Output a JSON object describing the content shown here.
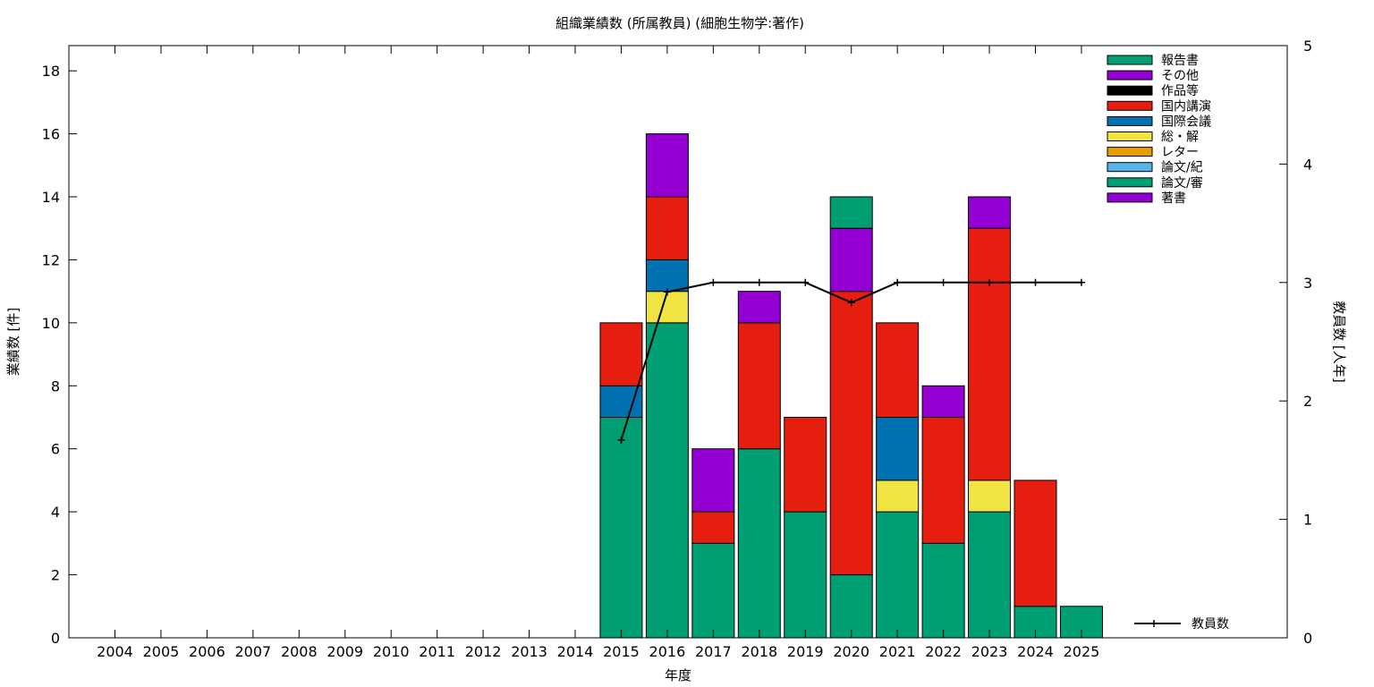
{
  "chart_data": {
    "type": "bar",
    "stacked": true,
    "title": "組織業績数 (所属教員) (細胞生物学:著作)",
    "xlabel": "年度",
    "ylabel": "業績数 [件]",
    "y2label": "教員数 [人年]",
    "ylim": [
      0,
      18.8
    ],
    "y2lim": [
      0,
      5
    ],
    "yticks": [
      0,
      2,
      4,
      6,
      8,
      10,
      12,
      14,
      16,
      18
    ],
    "y2ticks": [
      0,
      1,
      2,
      3,
      4,
      5
    ],
    "categories": [
      "2004",
      "2005",
      "2006",
      "2007",
      "2008",
      "2009",
      "2010",
      "2011",
      "2012",
      "2013",
      "2014",
      "2015",
      "2016",
      "2017",
      "2018",
      "2019",
      "2020",
      "2021",
      "2022",
      "2023",
      "2024",
      "2025"
    ],
    "series": [
      {
        "name": "論文/審",
        "color": "#009e73",
        "values": [
          0,
          0,
          0,
          0,
          0,
          0,
          0,
          0,
          0,
          0,
          0,
          7,
          10,
          3,
          6,
          4,
          2,
          4,
          3,
          4,
          1,
          1
        ]
      },
      {
        "name": "論文/紀",
        "color": "#56b4e9",
        "values": [
          0,
          0,
          0,
          0,
          0,
          0,
          0,
          0,
          0,
          0,
          0,
          0,
          0,
          0,
          0,
          0,
          0,
          0,
          0,
          0,
          0,
          0
        ]
      },
      {
        "name": "レター",
        "color": "#e69f00",
        "values": [
          0,
          0,
          0,
          0,
          0,
          0,
          0,
          0,
          0,
          0,
          0,
          0,
          0,
          0,
          0,
          0,
          0,
          0,
          0,
          0,
          0,
          0
        ]
      },
      {
        "name": "総・解",
        "color": "#f0e442",
        "values": [
          0,
          0,
          0,
          0,
          0,
          0,
          0,
          0,
          0,
          0,
          0,
          0,
          1,
          0,
          0,
          0,
          0,
          1,
          0,
          1,
          0,
          0
        ]
      },
      {
        "name": "国際会議",
        "color": "#0072b2",
        "values": [
          0,
          0,
          0,
          0,
          0,
          0,
          0,
          0,
          0,
          0,
          0,
          1,
          1,
          0,
          0,
          0,
          0,
          2,
          0,
          0,
          0,
          0
        ]
      },
      {
        "name": "国内講演",
        "color": "#e51e10",
        "values": [
          0,
          0,
          0,
          0,
          0,
          0,
          0,
          0,
          0,
          0,
          0,
          2,
          2,
          1,
          4,
          3,
          9,
          3,
          4,
          8,
          4,
          0
        ]
      },
      {
        "name": "作品等",
        "color": "#000000",
        "values": [
          0,
          0,
          0,
          0,
          0,
          0,
          0,
          0,
          0,
          0,
          0,
          0,
          0,
          0,
          0,
          0,
          0,
          0,
          0,
          0,
          0,
          0
        ]
      },
      {
        "name": "その他",
        "color": "#9400d3",
        "values": [
          0,
          0,
          0,
          0,
          0,
          0,
          0,
          0,
          0,
          0,
          0,
          0,
          2,
          2,
          1,
          0,
          2,
          0,
          1,
          1,
          0,
          0
        ]
      },
      {
        "name": "報告書",
        "color": "#009e73",
        "values": [
          0,
          0,
          0,
          0,
          0,
          0,
          0,
          0,
          0,
          0,
          0,
          0,
          0,
          0,
          0,
          0,
          1,
          0,
          0,
          0,
          0,
          0
        ]
      }
    ],
    "legend_order": [
      "報告書",
      "その他",
      "作品等",
      "国内講演",
      "国際会議",
      "総・解",
      "レター",
      "論文/紀",
      "論文/審",
      "著書"
    ],
    "legend_colors": {
      "著書": "#9400d3"
    },
    "legend_position": "top-right",
    "line": {
      "name": "教員数",
      "axis": "y2",
      "color": "#000000",
      "categories": [
        "2015",
        "2016",
        "2017",
        "2018",
        "2019",
        "2020",
        "2021",
        "2022",
        "2023",
        "2024",
        "2025"
      ],
      "values": [
        1.67,
        2.92,
        3,
        3,
        3,
        2.83,
        3,
        3,
        3,
        3,
        3
      ]
    }
  }
}
